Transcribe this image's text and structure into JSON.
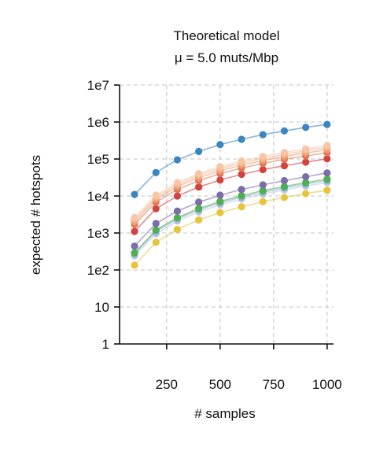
{
  "chart_data": {
    "type": "line",
    "title": "Theoretical model",
    "subtitle": "μ = 5.0 muts/Mbp",
    "xlabel": "# samples",
    "ylabel": "expected # hotspots",
    "y_scale": "log",
    "xlim": [
      30,
      1030
    ],
    "ylim": [
      1,
      10000000
    ],
    "x_ticks": [
      250,
      500,
      750,
      1000
    ],
    "x_tick_labels": [
      "250",
      "500",
      "750",
      "1000"
    ],
    "y_ticks": [
      1,
      10,
      100,
      1000,
      10000,
      100000,
      1000000,
      10000000
    ],
    "y_tick_labels": [
      "1",
      "10",
      "1e2",
      "1e3",
      "1e4",
      "1e5",
      "1e6",
      "1e7"
    ],
    "grid": true,
    "x": [
      100,
      200,
      300,
      400,
      500,
      600,
      700,
      800,
      900,
      1000
    ],
    "series": [
      {
        "color": "#3a86c0",
        "values": [
          11000,
          43000,
          95000,
          160000,
          245000,
          340000,
          455000,
          575000,
          715000,
          860000
        ]
      },
      {
        "color": "#f7c6a6",
        "values": [
          2600,
          10500,
          23000,
          40000,
          62000,
          88000,
          117000,
          150000,
          187000,
          232000
        ]
      },
      {
        "color": "#f5b48a",
        "values": [
          2300,
          9200,
          20500,
          36000,
          55000,
          78000,
          104000,
          134000,
          167000,
          205000
        ]
      },
      {
        "color": "#ee9a6e",
        "values": [
          2000,
          8200,
          18000,
          31000,
          48000,
          68000,
          91000,
          117000,
          145000,
          178000
        ]
      },
      {
        "color": "#e37858",
        "values": [
          1700,
          6800,
          15000,
          26000,
          40000,
          57000,
          76000,
          98000,
          121000,
          148000
        ]
      },
      {
        "color": "#d1433f",
        "values": [
          1100,
          4500,
          10000,
          17500,
          27000,
          38500,
          51500,
          66000,
          82000,
          101000
        ]
      },
      {
        "color": "#7b6ea6",
        "values": [
          440,
          1800,
          3900,
          6800,
          10500,
          15000,
          20000,
          26000,
          33000,
          42000
        ]
      },
      {
        "color": "#4caf50",
        "values": [
          290,
          1200,
          2600,
          4600,
          7100,
          10200,
          14000,
          18000,
          23000,
          28500
        ]
      },
      {
        "color": "#8fb0cc",
        "values": [
          270,
          1100,
          2400,
          4200,
          6500,
          9300,
          12600,
          16500,
          21000,
          26000
        ]
      },
      {
        "color": "#bcc8e8",
        "values": [
          240,
          950,
          2100,
          3700,
          5800,
          8200,
          11200,
          14600,
          18500,
          23000
        ]
      },
      {
        "color": "#e6c53c",
        "values": [
          135,
          560,
          1250,
          2250,
          3550,
          5100,
          7000,
          9100,
          11600,
          14300
        ]
      }
    ]
  }
}
